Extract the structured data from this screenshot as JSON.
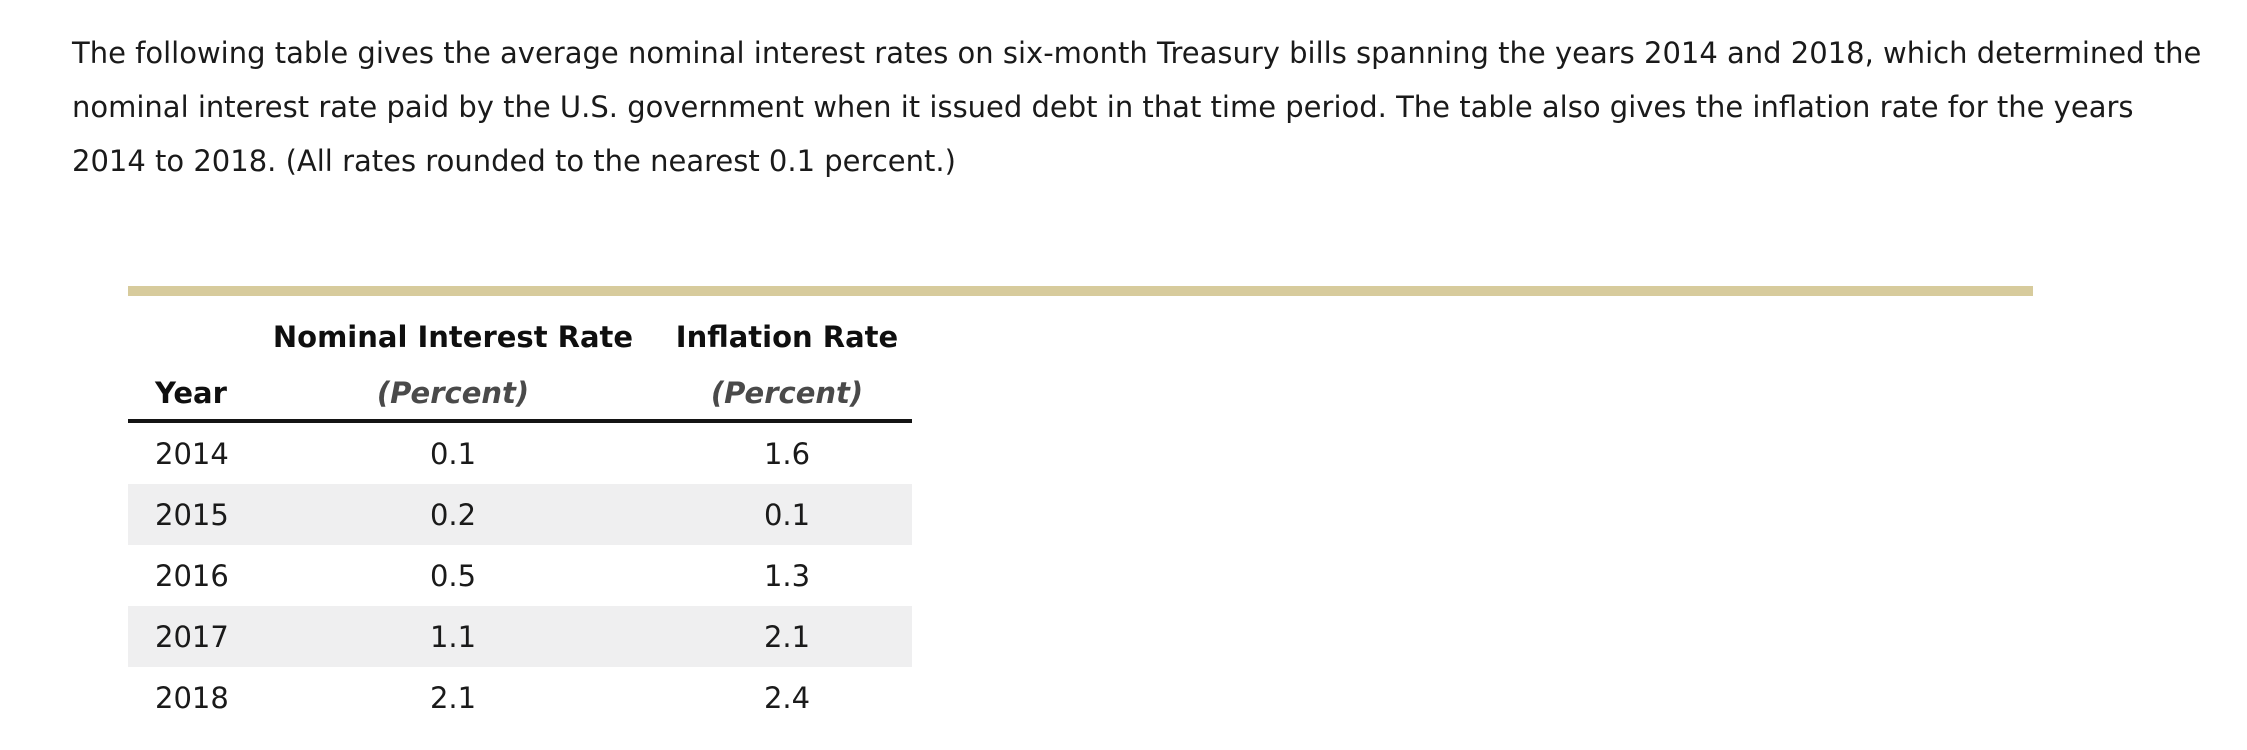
{
  "intro": {
    "text": "The following table gives the average nominal interest rates on six-month Treasury bills spanning the years 2014 and 2018, which determined the nominal interest rate paid by the U.S. government when it issued debt in that time period. The table also gives the inflation rate for the years 2014 to 2018. (All rates rounded to the nearest 0.1 percent.)"
  },
  "table": {
    "columns": [
      {
        "label": "Year",
        "sublabel": ""
      },
      {
        "label": "Nominal Interest Rate",
        "sublabel": "(Percent)"
      },
      {
        "label": "Inflation Rate",
        "sublabel": "(Percent)"
      }
    ],
    "rows": [
      {
        "year": "2014",
        "nominal": "0.1",
        "inflation": "1.6"
      },
      {
        "year": "2015",
        "nominal": "0.2",
        "inflation": "0.1"
      },
      {
        "year": "2016",
        "nominal": "0.5",
        "inflation": "1.3"
      },
      {
        "year": "2017",
        "nominal": "1.1",
        "inflation": "2.1"
      },
      {
        "year": "2018",
        "nominal": "2.1",
        "inflation": "2.4"
      }
    ]
  },
  "colors": {
    "accent_bar": "#D7CB9C",
    "row_alt_background": "#EFEFF0",
    "header_rule": "#141414",
    "subheader_text": "#4a4a4a",
    "body_text": "#1a1a1a"
  },
  "chart_data": {
    "type": "table",
    "title": "",
    "columns": [
      "Year",
      "Nominal Interest Rate (Percent)",
      "Inflation Rate (Percent)"
    ],
    "rows": [
      [
        2014,
        0.1,
        1.6
      ],
      [
        2015,
        0.2,
        0.1
      ],
      [
        2016,
        0.5,
        1.3
      ],
      [
        2017,
        1.1,
        2.1
      ],
      [
        2018,
        2.1,
        2.4
      ]
    ]
  }
}
